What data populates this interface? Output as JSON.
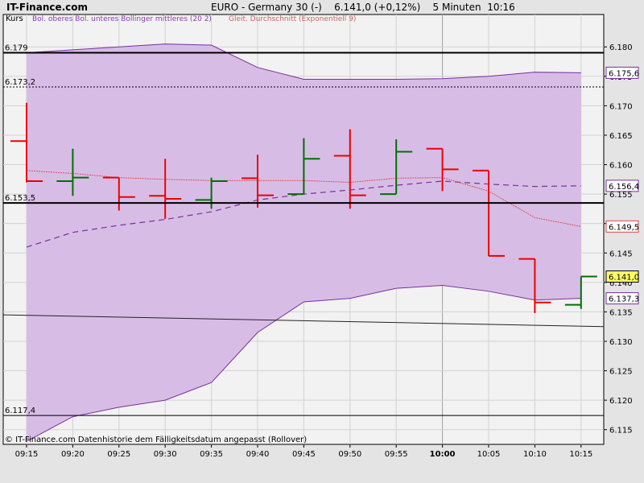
{
  "header": {
    "brand": "IT-Finance.com",
    "title": "EURO - Germany 30 (-)    6.141,0 (+0,12%)    5 Minuten  10:16",
    "kurs_label": "Kurs",
    "legend_bollinger": "Bol. oberes Bol. unteres Bollinger mittleres (20 2)",
    "legend_ema": "Gleit. Durchschnitt (Exponentiell 9)"
  },
  "footer": {
    "copyright": "© IT-Finance.com Datenhistorie dem Fälligkeitsdatum angepasst (Rollover)"
  },
  "colors": {
    "up": "#007000",
    "down": "#ee0000",
    "band_fill": "#d7bde6",
    "band_line": "#7a2ea0",
    "middle": "#7a2ea0",
    "ema": "#dd4444",
    "legend_bol": "#8b3db5",
    "legend_ema": "#cc6666"
  },
  "chart_data": {
    "type": "ohlc",
    "title": "EURO - Germany 30 (-)",
    "ylim": [
      6.1125,
      6.1855
    ],
    "y_ticks": [
      "6.115",
      "6.120",
      "6.125",
      "6.130",
      "6.135",
      "6.140",
      "6.145",
      "6.150",
      "6.155",
      "6.160",
      "6.165",
      "6.170",
      "6.175",
      "6.180"
    ],
    "x_labels": [
      "09:15",
      "09:20",
      "09:25",
      "09:30",
      "09:35",
      "09:40",
      "09:45",
      "09:50",
      "09:55",
      "10:00",
      "10:05",
      "10:10",
      "10:15"
    ],
    "bold_x_label": "10:00",
    "candles": [
      {
        "time": "09:15",
        "open": 6.164,
        "high": 6.1705,
        "low": 6.157,
        "close": 6.1572
      },
      {
        "time": "09:20",
        "open": 6.1572,
        "high": 6.1627,
        "low": 6.1547,
        "close": 6.1578
      },
      {
        "time": "09:25",
        "open": 6.1578,
        "high": 6.1578,
        "low": 6.1522,
        "close": 6.1545
      },
      {
        "time": "09:30",
        "open": 6.1547,
        "high": 6.161,
        "low": 6.1508,
        "close": 6.1542
      },
      {
        "time": "09:35",
        "open": 6.154,
        "high": 6.1578,
        "low": 6.1525,
        "close": 6.1572
      },
      {
        "time": "09:40",
        "open": 6.1577,
        "high": 6.1617,
        "low": 6.1527,
        "close": 6.1548
      },
      {
        "time": "09:45",
        "open": 6.155,
        "high": 6.1645,
        "low": 6.155,
        "close": 6.161
      },
      {
        "time": "09:50",
        "open": 6.1615,
        "high": 6.166,
        "low": 6.1525,
        "close": 6.1548
      },
      {
        "time": "09:55",
        "open": 6.155,
        "high": 6.1643,
        "low": 6.155,
        "close": 6.1622
      },
      {
        "time": "10:00",
        "open": 6.1627,
        "high": 6.1627,
        "low": 6.1555,
        "close": 6.1592
      },
      {
        "time": "10:05",
        "open": 6.159,
        "high": 6.159,
        "low": 6.1445,
        "close": 6.1445
      },
      {
        "time": "10:10",
        "open": 6.144,
        "high": 6.144,
        "low": 6.1348,
        "close": 6.1366
      },
      {
        "time": "10:15",
        "open": 6.1362,
        "high": 6.141,
        "low": 6.1355,
        "close": 6.141
      }
    ],
    "bollinger_upper": [
      6.179,
      6.1795,
      6.18,
      6.1805,
      6.1803,
      6.1765,
      6.1745,
      6.1745,
      6.1745,
      6.1746,
      6.175,
      6.1757,
      6.1756
    ],
    "bollinger_lower": [
      6.113,
      6.1172,
      6.1188,
      6.12,
      6.123,
      6.1315,
      6.1367,
      6.1373,
      6.139,
      6.1395,
      6.1385,
      6.137,
      6.1373
    ],
    "bollinger_middle": [
      6.146,
      6.1485,
      6.1497,
      6.1507,
      6.152,
      6.154,
      6.155,
      6.1557,
      6.1565,
      6.1572,
      6.1567,
      6.1563,
      6.1564
    ],
    "ema_9": [
      6.159,
      6.1585,
      6.1578,
      6.1575,
      6.1573,
      6.1573,
      6.1573,
      6.157,
      6.1577,
      6.1578,
      6.1555,
      6.151,
      6.1495
    ],
    "hlines": [
      {
        "value": 6.179,
        "label": "6.179",
        "style": "solid-thick"
      },
      {
        "value": 6.1732,
        "label": "6.173,2",
        "style": "dotted"
      },
      {
        "value": 6.1535,
        "label": "6.153,5",
        "style": "solid-thick"
      },
      {
        "value": 6.1174,
        "label": "6.117,4",
        "style": "solid-thin"
      }
    ],
    "trendline": {
      "from": {
        "time": "09:15",
        "value": 6.1345
      },
      "to": {
        "time": "10:15",
        "value": 6.1325
      }
    },
    "price_tags": [
      {
        "label": "6.175,6",
        "value": 6.1756,
        "color": "#7a2ea0",
        "bg": "#ffffff"
      },
      {
        "label": "6.156,4",
        "value": 6.1564,
        "color": "#7a2ea0",
        "bg": "#ffffff"
      },
      {
        "label": "6.149,5",
        "value": 6.1495,
        "color": "#dd4444",
        "bg": "#ffffff"
      },
      {
        "label": "6.141,0",
        "value": 6.141,
        "color": "#000000",
        "bg": "#ffff66"
      },
      {
        "label": "6.137,3",
        "value": 6.1373,
        "color": "#7a2ea0",
        "bg": "#ffffff"
      }
    ]
  }
}
